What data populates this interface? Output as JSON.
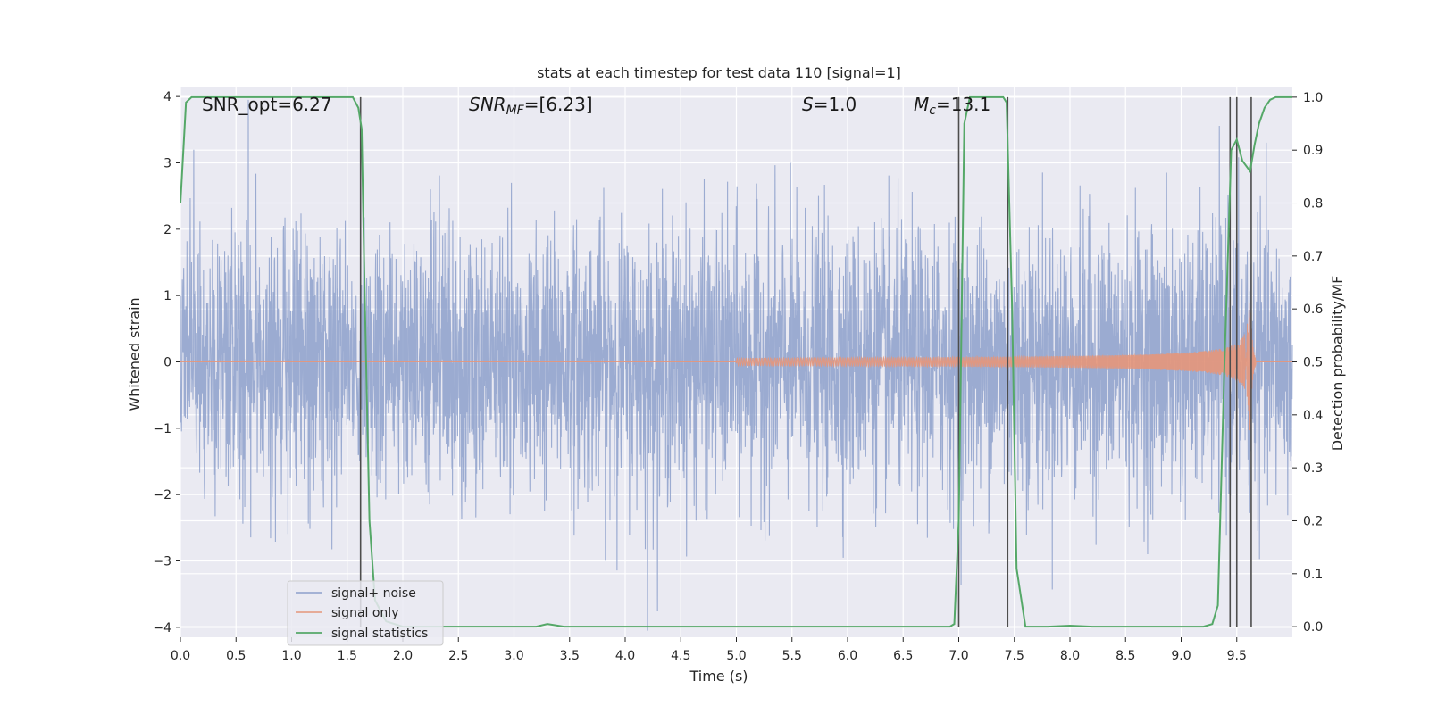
{
  "chart_data": {
    "type": "line",
    "title": "stats at each timestep for test data 110 [signal=1]",
    "xlabel": "Time (s)",
    "ylabel_left": "Whitened strain",
    "ylabel_right": "Detection probability/MF",
    "xlim": [
      0,
      10
    ],
    "ylim_left": [
      -4.15,
      4.15
    ],
    "ylim_right": [
      -0.02,
      1.02
    ],
    "x_ticks": [
      0.0,
      0.5,
      1.0,
      1.5,
      2.0,
      2.5,
      3.0,
      3.5,
      4.0,
      4.5,
      5.0,
      5.5,
      6.0,
      6.5,
      7.0,
      7.5,
      8.0,
      8.5,
      9.0,
      9.5
    ],
    "x_tick_labels": [
      "0.0",
      "0.5",
      "1.0",
      "1.5",
      "2.0",
      "2.5",
      "3.0",
      "3.5",
      "4.0",
      "4.5",
      "5.0",
      "5.5",
      "6.0",
      "6.5",
      "7.0",
      "7.5",
      "8.0",
      "8.5",
      "9.0",
      "9.5"
    ],
    "y_left_ticks": [
      -4,
      -3,
      -2,
      -1,
      0,
      1,
      2,
      3,
      4
    ],
    "y_left_tick_labels": [
      "−4",
      "−3",
      "−2",
      "−1",
      "0",
      "1",
      "2",
      "3",
      "4"
    ],
    "y_right_ticks": [
      0.0,
      0.1,
      0.2,
      0.3,
      0.4,
      0.5,
      0.6,
      0.7,
      0.8,
      0.9,
      1.0
    ],
    "y_right_tick_labels": [
      "0.0",
      "0.1",
      "0.2",
      "0.3",
      "0.4",
      "0.5",
      "0.6",
      "0.7",
      "0.8",
      "0.9",
      "1.0"
    ],
    "grid": true,
    "legend_position": "lower-left",
    "annotations": {
      "snr_opt": "SNR_opt=6.27",
      "snr_mf_sym": "SNR",
      "snr_mf_sub": "MF",
      "snr_mf_val": "=[6.23]",
      "s_sym": "S",
      "s_val": "=1.0",
      "mc_sym": "M",
      "mc_sub": "c",
      "mc_val": "=13.1"
    },
    "series": [
      {
        "name": "signal+ noise",
        "color": "#8da0cb",
        "axis": "left",
        "noise_envelope": {
          "sigma": 1.0,
          "extreme_peak": 3.95,
          "extreme_trough": -4.05
        }
      },
      {
        "name": "signal only",
        "color": "#e5967a",
        "axis": "left",
        "chirp": {
          "start": 5.0,
          "merger": 9.62,
          "peak_amplitude": 1.1
        }
      },
      {
        "name": "signal statistics",
        "color": "#55a868",
        "axis": "right",
        "x": [
          0.0,
          0.05,
          0.1,
          0.2,
          0.3,
          0.5,
          0.8,
          1.0,
          1.2,
          1.4,
          1.5,
          1.55,
          1.6,
          1.63,
          1.66,
          1.7,
          1.75,
          1.85,
          2.0,
          2.5,
          3.0,
          3.2,
          3.3,
          3.45,
          4.0,
          5.0,
          6.0,
          6.5,
          6.8,
          6.92,
          6.96,
          7.0,
          7.05,
          7.1,
          7.2,
          7.3,
          7.4,
          7.43,
          7.48,
          7.52,
          7.6,
          7.8,
          8.0,
          8.2,
          8.5,
          9.0,
          9.2,
          9.28,
          9.33,
          9.39,
          9.45,
          9.5,
          9.55,
          9.62,
          9.66,
          9.7,
          9.75,
          9.8,
          9.85,
          9.9,
          10.0
        ],
        "y": [
          0.8,
          0.99,
          1.0,
          1.0,
          1.0,
          1.0,
          1.0,
          1.0,
          1.0,
          1.0,
          1.0,
          1.0,
          0.98,
          0.94,
          0.6,
          0.2,
          0.05,
          0.01,
          0.0,
          0.0,
          0.0,
          0.0,
          0.005,
          0.0,
          0.0,
          0.0,
          0.0,
          0.0,
          0.0,
          0.0,
          0.005,
          0.2,
          0.95,
          1.0,
          1.0,
          1.0,
          1.0,
          0.99,
          0.6,
          0.11,
          0.0,
          0.0,
          0.002,
          0.0,
          0.0,
          0.0,
          0.0,
          0.005,
          0.04,
          0.5,
          0.9,
          0.92,
          0.88,
          0.86,
          0.91,
          0.95,
          0.98,
          0.995,
          1.0,
          1.0,
          1.0
        ]
      }
    ],
    "vertical_lines": [
      1.62,
      7.0,
      7.44,
      9.44,
      9.5,
      9.63
    ]
  }
}
